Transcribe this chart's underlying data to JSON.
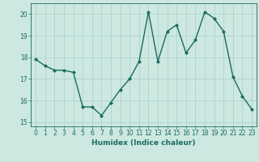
{
  "x": [
    0,
    1,
    2,
    3,
    4,
    5,
    6,
    7,
    8,
    9,
    10,
    11,
    12,
    13,
    14,
    15,
    16,
    17,
    18,
    19,
    20,
    21,
    22,
    23
  ],
  "y": [
    17.9,
    17.6,
    17.4,
    17.4,
    17.3,
    15.7,
    15.7,
    15.3,
    15.9,
    16.5,
    17.0,
    17.8,
    20.1,
    17.8,
    19.2,
    19.5,
    18.2,
    18.8,
    20.1,
    19.8,
    19.2,
    17.1,
    16.2,
    15.6
  ],
  "line_color": "#1a6b5e",
  "marker": "D",
  "marker_size": 2.0,
  "bg_color": "#cce8e0",
  "grid_color": "#aacfc8",
  "xlabel": "Humidex (Indice chaleur)",
  "xlim": [
    -0.5,
    23.5
  ],
  "ylim": [
    14.8,
    20.5
  ],
  "yticks": [
    15,
    16,
    17,
    18,
    19,
    20
  ],
  "xticks": [
    0,
    1,
    2,
    3,
    4,
    5,
    6,
    7,
    8,
    9,
    10,
    11,
    12,
    13,
    14,
    15,
    16,
    17,
    18,
    19,
    20,
    21,
    22,
    23
  ],
  "tick_color": "#1a6b5e",
  "label_color": "#1a6b5e",
  "xlabel_fontsize": 6.5,
  "tick_fontsize": 5.5,
  "line_width": 1.0
}
